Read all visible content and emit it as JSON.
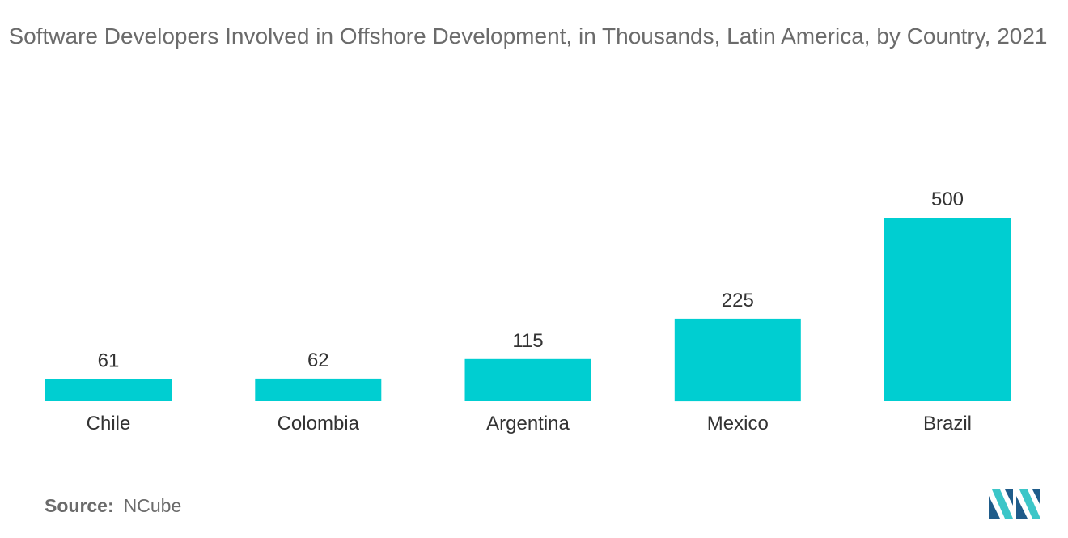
{
  "title": "Software Developers Involved in Offshore Development, in Thousands, Latin America, by Country, 2021",
  "source": {
    "label": "Source:",
    "value": "NCube"
  },
  "colors": {
    "bar": "#00CED1",
    "text": "#333333",
    "muted": "#6b6b6b",
    "logo_dark": "#1f5c8a",
    "logo_light": "#3cc6c8"
  },
  "chart_data": {
    "type": "bar",
    "title": "Software Developers Involved in Offshore Development, in Thousands, Latin America, by Country, 2021",
    "categories": [
      "Chile",
      "Colombia",
      "Argentina",
      "Mexico",
      "Brazil"
    ],
    "values": [
      61,
      62,
      115,
      225,
      500
    ],
    "xlabel": "",
    "ylabel": "",
    "ylim": [
      0,
      500
    ],
    "grid": false,
    "legend": "none",
    "data_labels": true
  }
}
